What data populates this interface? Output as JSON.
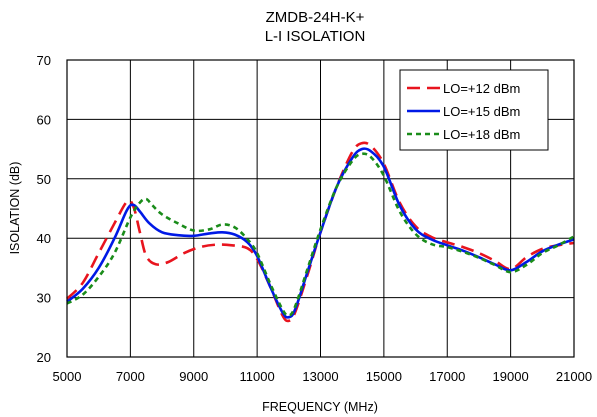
{
  "chart_data": {
    "type": "line",
    "title": "ZMDB-24H-K+",
    "subtitle": "L-I ISOLATION",
    "xlabel": "FREQUENCY (MHz)",
    "ylabel": "ISOLATION (dB)",
    "xlim": [
      5000,
      21000
    ],
    "ylim": [
      20,
      70
    ],
    "xticks": [
      5000,
      7000,
      9000,
      11000,
      13000,
      15000,
      17000,
      19000,
      21000
    ],
    "yticks": [
      20,
      30,
      40,
      50,
      60,
      70
    ],
    "grid": true,
    "legend_position": "top-right",
    "series": [
      {
        "name": "LO=+12 dBm",
        "color": "#e8141e",
        "dash": "dashed",
        "x": [
          5000,
          5500,
          6000,
          6500,
          6900,
          7100,
          7300,
          7500,
          7800,
          8200,
          8700,
          9200,
          9700,
          10200,
          10700,
          11000,
          11400,
          11800,
          12000,
          12200,
          12600,
          13000,
          13500,
          14000,
          14300,
          14600,
          15000,
          15500,
          16000,
          16500,
          17000,
          17500,
          18000,
          18500,
          19000,
          19500,
          20000,
          20500,
          21000
        ],
        "y": [
          29.8,
          32.5,
          37.5,
          42.5,
          46.2,
          45.3,
          41.0,
          37.0,
          35.6,
          36.0,
          37.5,
          38.5,
          38.9,
          38.8,
          38.3,
          36.5,
          32.0,
          27.0,
          26.1,
          27.5,
          34.0,
          41.0,
          48.5,
          54.5,
          56.0,
          55.5,
          52.5,
          46.0,
          42.0,
          40.2,
          39.3,
          38.5,
          37.5,
          36.2,
          34.8,
          36.8,
          38.2,
          38.8,
          39.2
        ]
      },
      {
        "name": "LO=+15 dBm",
        "color": "#0019e6",
        "dash": "solid",
        "x": [
          5000,
          5500,
          6000,
          6500,
          6900,
          7100,
          7300,
          7600,
          8000,
          8500,
          9000,
          9500,
          9900,
          10300,
          10700,
          11000,
          11400,
          11800,
          12000,
          12200,
          12600,
          13000,
          13500,
          14000,
          14300,
          14600,
          15000,
          15500,
          16000,
          16500,
          17000,
          17500,
          18000,
          18500,
          19000,
          19500,
          20000,
          20500,
          21000
        ],
        "y": [
          29.3,
          31.5,
          35.0,
          40.0,
          44.8,
          45.6,
          44.5,
          42.5,
          41.0,
          40.5,
          40.4,
          40.8,
          41.0,
          40.6,
          39.3,
          37.0,
          32.0,
          27.5,
          26.7,
          28.0,
          34.5,
          41.0,
          48.5,
          53.5,
          55.0,
          54.6,
          52.0,
          45.5,
          41.5,
          39.8,
          38.8,
          37.9,
          36.8,
          35.6,
          34.6,
          36.0,
          37.8,
          38.9,
          39.8
        ]
      },
      {
        "name": "LO=+18 dBm",
        "color": "#1a8c1a",
        "dash": "dotted",
        "x": [
          5000,
          5500,
          6000,
          6500,
          7000,
          7300,
          7500,
          7700,
          8000,
          8500,
          9000,
          9500,
          9900,
          10300,
          10700,
          11000,
          11400,
          11800,
          12000,
          12200,
          12600,
          13000,
          13500,
          14000,
          14300,
          14600,
          15000,
          15500,
          16000,
          16500,
          17000,
          17500,
          18000,
          18500,
          19000,
          19500,
          20000,
          20500,
          21000
        ],
        "y": [
          29.0,
          30.5,
          33.5,
          37.5,
          43.5,
          46.0,
          46.6,
          45.5,
          44.0,
          42.5,
          41.3,
          41.5,
          42.3,
          41.8,
          39.8,
          37.5,
          32.5,
          28.0,
          27.0,
          28.5,
          35.0,
          41.5,
          48.5,
          53.0,
          54.2,
          53.6,
          50.5,
          44.5,
          40.7,
          39.0,
          38.5,
          37.7,
          36.7,
          35.5,
          34.3,
          35.5,
          37.5,
          38.8,
          40.3
        ]
      }
    ]
  }
}
